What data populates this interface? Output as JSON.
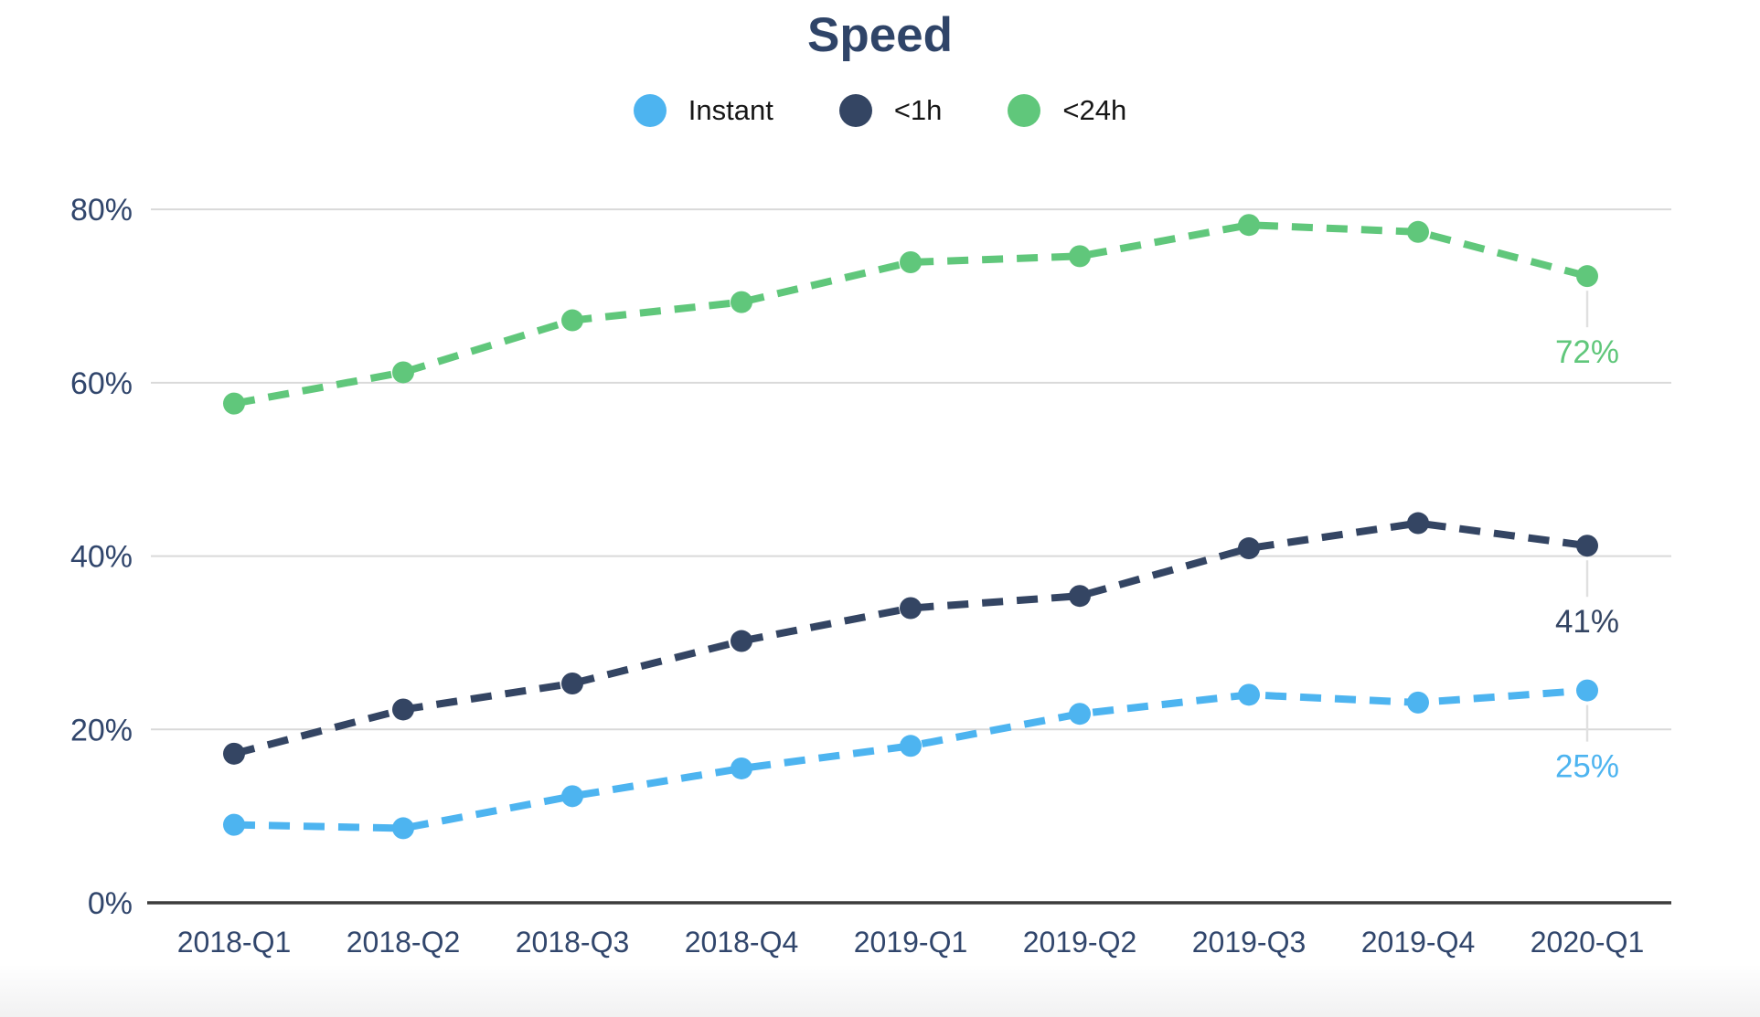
{
  "page": {
    "title": "Speed"
  },
  "chart_data": {
    "type": "line",
    "title": "Speed",
    "line_style": "dashed",
    "grid": "horizontal",
    "legend_position": "top",
    "categories": [
      "2018-Q1",
      "2018-Q2",
      "2018-Q3",
      "2018-Q4",
      "2019-Q1",
      "2019-Q2",
      "2019-Q3",
      "2019-Q4",
      "2020-Q1"
    ],
    "series": [
      {
        "name": "Instant",
        "color": "#4DB4F0",
        "values": [
          9,
          8.6,
          12.3,
          15.5,
          18.1,
          21.8,
          24,
          23.1,
          24.5
        ],
        "end_label": "25%"
      },
      {
        "name": "<1h",
        "color": "#344563",
        "values": [
          17.2,
          22.3,
          25.3,
          30.2,
          34,
          35.4,
          40.9,
          43.8,
          41.2
        ],
        "end_label": "41%"
      },
      {
        "name": "<24h",
        "color": "#60C77B",
        "values": [
          57.6,
          61.2,
          67.2,
          69.3,
          73.9,
          74.6,
          78.2,
          77.4,
          72.3
        ],
        "end_label": "72%"
      }
    ],
    "yticks": [
      "0%",
      "20%",
      "40%",
      "60%",
      "80%"
    ],
    "ylabel": "",
    "xlabel": "",
    "ylim": [
      0,
      84
    ]
  },
  "colors": {
    "title_text": "#2F4468",
    "tick_text": "#31466C",
    "legend_text": "#161616",
    "gridline": "#D9D9D9",
    "axis_line": "#3C3C3C",
    "end_label_connector": "#E0E0E0",
    "background": "#FFFFFF"
  }
}
